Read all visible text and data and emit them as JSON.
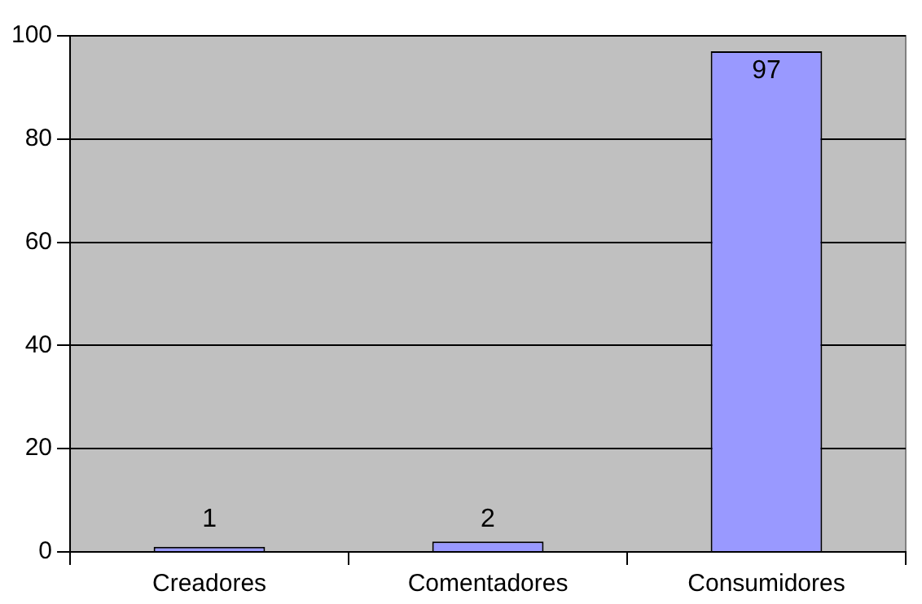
{
  "chart_data": {
    "type": "bar",
    "categories": [
      "Creadores",
      "Comentadores",
      "Consumidores"
    ],
    "values": [
      1,
      2,
      97
    ],
    "color": "#9999ff",
    "ylim": [
      0,
      100
    ],
    "yticks": [
      0,
      20,
      40,
      60,
      80,
      100
    ],
    "grid": "y",
    "data_labels": true,
    "legend": false
  }
}
